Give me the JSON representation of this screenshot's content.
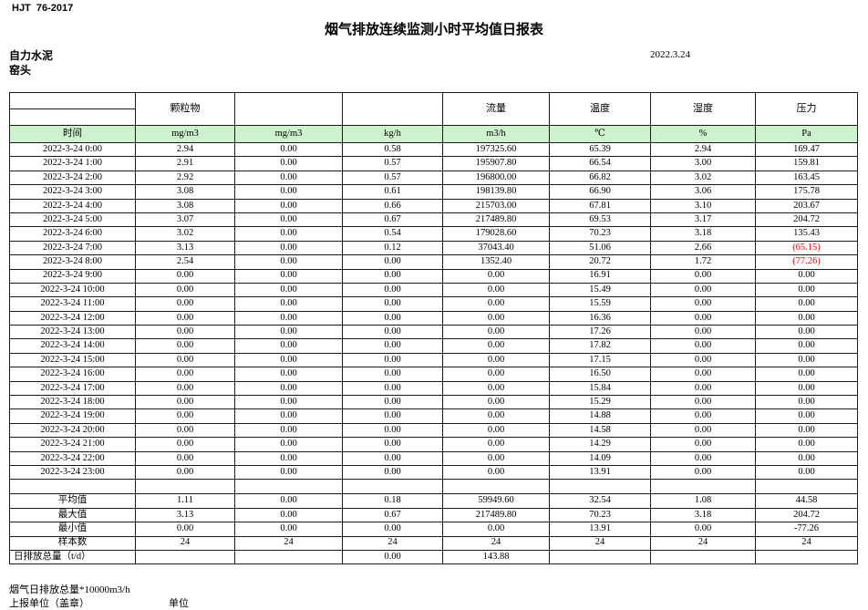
{
  "page": {
    "standard_code": "HJT  76-2017",
    "title": "烟气排放连续监测小时平均值日报表",
    "company": "自力水泥",
    "station": "窑头",
    "date": "2022.3.24"
  },
  "table": {
    "group_headers": [
      "",
      "颗粒物",
      "",
      "",
      "流量",
      "温度",
      "湿度",
      "压力"
    ],
    "unit_headers": [
      "时间",
      "mg/m3",
      "mg/m3",
      "kg/h",
      "m3/h",
      "℃",
      "%",
      "Pa"
    ],
    "rows": [
      {
        "time": "2022-3-24 0:00",
        "values": [
          "2.94",
          "0.00",
          "0.58",
          "197325.60",
          "65.39",
          "2.94",
          "169.47"
        ]
      },
      {
        "time": "2022-3-24 1:00",
        "values": [
          "2.91",
          "0.00",
          "0.57",
          "195907.80",
          "66.54",
          "3.00",
          "159.81"
        ]
      },
      {
        "time": "2022-3-24 2:00",
        "values": [
          "2.92",
          "0.00",
          "0.57",
          "196800.00",
          "66.82",
          "3.02",
          "163.45"
        ]
      },
      {
        "time": "2022-3-24 3:00",
        "values": [
          "3.08",
          "0.00",
          "0.61",
          "198139.80",
          "66.90",
          "3.06",
          "175.78"
        ]
      },
      {
        "time": "2022-3-24 4:00",
        "values": [
          "3.08",
          "0.00",
          "0.66",
          "215703.00",
          "67.81",
          "3.10",
          "203.67"
        ]
      },
      {
        "time": "2022-3-24 5:00",
        "values": [
          "3.07",
          "0.00",
          "0.67",
          "217489.80",
          "69.53",
          "3.17",
          "204.72"
        ]
      },
      {
        "time": "2022-3-24 6:00",
        "values": [
          "3.02",
          "0.00",
          "0.54",
          "179028.60",
          "70.23",
          "3.18",
          "135.43"
        ]
      },
      {
        "time": "2022-3-24 7:00",
        "values": [
          "3.13",
          "0.00",
          "0.12",
          "37043.40",
          "51.06",
          "2.66",
          "(65.15)"
        ]
      },
      {
        "time": "2022-3-24 8:00",
        "values": [
          "2.54",
          "0.00",
          "0.00",
          "1352.40",
          "20.72",
          "1.72",
          "(77.26)"
        ]
      },
      {
        "time": "2022-3-24 9:00",
        "values": [
          "0.00",
          "0.00",
          "0.00",
          "0.00",
          "16.91",
          "0.00",
          "0.00"
        ]
      },
      {
        "time": "2022-3-24 10:00",
        "values": [
          "0.00",
          "0.00",
          "0.00",
          "0.00",
          "15.49",
          "0.00",
          "0.00"
        ]
      },
      {
        "time": "2022-3-24 11:00",
        "values": [
          "0.00",
          "0.00",
          "0.00",
          "0.00",
          "15.59",
          "0.00",
          "0.00"
        ]
      },
      {
        "time": "2022-3-24 12:00",
        "values": [
          "0.00",
          "0.00",
          "0.00",
          "0.00",
          "16.36",
          "0.00",
          "0.00"
        ]
      },
      {
        "time": "2022-3-24 13:00",
        "values": [
          "0.00",
          "0.00",
          "0.00",
          "0.00",
          "17.26",
          "0.00",
          "0.00"
        ]
      },
      {
        "time": "2022-3-24 14:00",
        "values": [
          "0.00",
          "0.00",
          "0.00",
          "0.00",
          "17.82",
          "0.00",
          "0.00"
        ]
      },
      {
        "time": "2022-3-24 15:00",
        "values": [
          "0.00",
          "0.00",
          "0.00",
          "0.00",
          "17.15",
          "0.00",
          "0.00"
        ]
      },
      {
        "time": "2022-3-24 16:00",
        "values": [
          "0.00",
          "0.00",
          "0.00",
          "0.00",
          "16.50",
          "0.00",
          "0.00"
        ]
      },
      {
        "time": "2022-3-24 17:00",
        "values": [
          "0.00",
          "0.00",
          "0.00",
          "0.00",
          "15.84",
          "0.00",
          "0.00"
        ]
      },
      {
        "time": "2022-3-24 18:00",
        "values": [
          "0.00",
          "0.00",
          "0.00",
          "0.00",
          "15.29",
          "0.00",
          "0.00"
        ]
      },
      {
        "time": "2022-3-24 19:00",
        "values": [
          "0.00",
          "0.00",
          "0.00",
          "0.00",
          "14.88",
          "0.00",
          "0.00"
        ]
      },
      {
        "time": "2022-3-24 20:00",
        "values": [
          "0.00",
          "0.00",
          "0.00",
          "0.00",
          "14.58",
          "0.00",
          "0.00"
        ]
      },
      {
        "time": "2022-3-24 21:00",
        "values": [
          "0.00",
          "0.00",
          "0.00",
          "0.00",
          "14.29",
          "0.00",
          "0.00"
        ]
      },
      {
        "time": "2022-3-24 22:00",
        "values": [
          "0.00",
          "0.00",
          "0.00",
          "0.00",
          "14.09",
          "0.00",
          "0.00"
        ]
      },
      {
        "time": "2022-3-24 23:00",
        "values": [
          "0.00",
          "0.00",
          "0.00",
          "0.00",
          "13.91",
          "0.00",
          "0.00"
        ]
      }
    ],
    "red_cells": [
      [
        7,
        6
      ],
      [
        8,
        6
      ]
    ],
    "summary": [
      {
        "label": "平均值",
        "values": [
          "1.11",
          "0.00",
          "0.18",
          "59949.60",
          "32.54",
          "1.08",
          "44.58"
        ]
      },
      {
        "label": "最大值",
        "values": [
          "3.13",
          "0.00",
          "0.67",
          "217489.80",
          "70.23",
          "3.18",
          "204.72"
        ]
      },
      {
        "label": "最小值",
        "values": [
          "0.00",
          "0.00",
          "0.00",
          "0.00",
          "13.91",
          "0.00",
          "-77.26"
        ]
      },
      {
        "label": "样本数",
        "values": [
          "24",
          "24",
          "24",
          "24",
          "24",
          "24",
          "24"
        ]
      },
      {
        "label": "日排放总量（t/d）",
        "values": [
          "",
          "",
          "0.00",
          "143.88",
          "",
          "",
          ""
        ]
      }
    ]
  },
  "footer": {
    "note": "烟气日排放总量*10000m3/h",
    "report_unit": "上报单位（盖章）",
    "unit_label": "单位"
  },
  "colors": {
    "header_green": "#CDF2CD",
    "alert_red": "#FF0000"
  }
}
